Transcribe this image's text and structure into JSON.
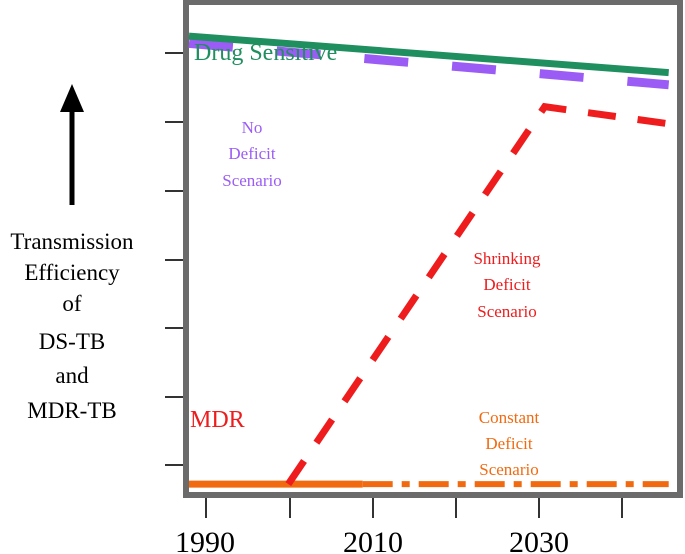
{
  "chart_data": {
    "type": "line",
    "title": "",
    "xlabel": "",
    "ylabel": [
      "Transmission",
      "Efficiency",
      "of",
      "DS-TB",
      "and",
      "MDR-TB"
    ],
    "x_ticks": [
      1990,
      2010,
      2030
    ],
    "xlim": [
      1988,
      2047
    ],
    "ylim": [
      0,
      10
    ],
    "grid": false,
    "series": [
      {
        "name": "Drug Sensitive",
        "style": "solid",
        "color": "#1f8f5f",
        "points": [
          [
            1988,
            9.3
          ],
          [
            2046,
            8.55
          ]
        ]
      },
      {
        "name": "No Deficit Scenario",
        "style": "dashed",
        "color": "#9b5cf6",
        "points": [
          [
            1988,
            9.15
          ],
          [
            2046,
            8.3
          ]
        ]
      },
      {
        "name": "Shrinking Deficit Scenario",
        "style": "dashed",
        "color": "#ee1c1c",
        "points": [
          [
            2000,
            0.1
          ],
          [
            2031,
            7.85
          ],
          [
            2046,
            7.5
          ]
        ]
      },
      {
        "name": "MDR",
        "style": "solid",
        "color": "#f26a10",
        "points": [
          [
            1988,
            0.1
          ],
          [
            2009,
            0.1
          ]
        ]
      },
      {
        "name": "Constant Deficit Scenario",
        "style": "dashdot",
        "color": "#f26a10",
        "points": [
          [
            2009,
            0.1
          ],
          [
            2046,
            0.1
          ]
        ]
      }
    ],
    "annotations": {
      "drug_sensitive": "Drug Sensitive",
      "mdr": "MDR",
      "no_deficit": [
        "No",
        "Deficit",
        "Scenario"
      ],
      "shrinking_deficit": [
        "Shrinking",
        "Deficit",
        "Scenario"
      ],
      "constant_deficit": [
        "Constant",
        "Deficit",
        "Scenario"
      ]
    }
  },
  "colors": {
    "frame": "#6b6b6b",
    "tick": "#333333",
    "text": "#000000"
  }
}
